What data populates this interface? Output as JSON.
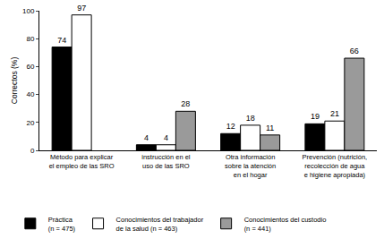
{
  "chart_data": {
    "type": "bar",
    "y_label": "Correctos (%)",
    "categories": [
      "Método para explicar\nel empleo de las SRO",
      "instrucción en el\nuso de las SRO",
      "Otra información\nsobre la atención\nen el hogar",
      "Prevención (nutrición,\nrecolección de agua\ne higiene apropiada)"
    ],
    "series": [
      {
        "name": "Práctica\n(n = 475)",
        "color": "#000000",
        "values": [
          74,
          4,
          12,
          19
        ]
      },
      {
        "name": "Conocimientos del trabajador\nde la salud (n = 463)",
        "color": "#ffffff",
        "values": [
          97,
          4,
          18,
          21
        ]
      },
      {
        "name": "Conocimientos del custodio\n(n = 441)",
        "color": "#9a9a9a",
        "values": [
          null,
          28,
          11,
          66
        ]
      }
    ],
    "ylim": [
      0,
      100
    ],
    "yticks": [
      0,
      20,
      40,
      60,
      80,
      100
    ],
    "grid": false,
    "legend": "bottom",
    "data_labels": true
  }
}
